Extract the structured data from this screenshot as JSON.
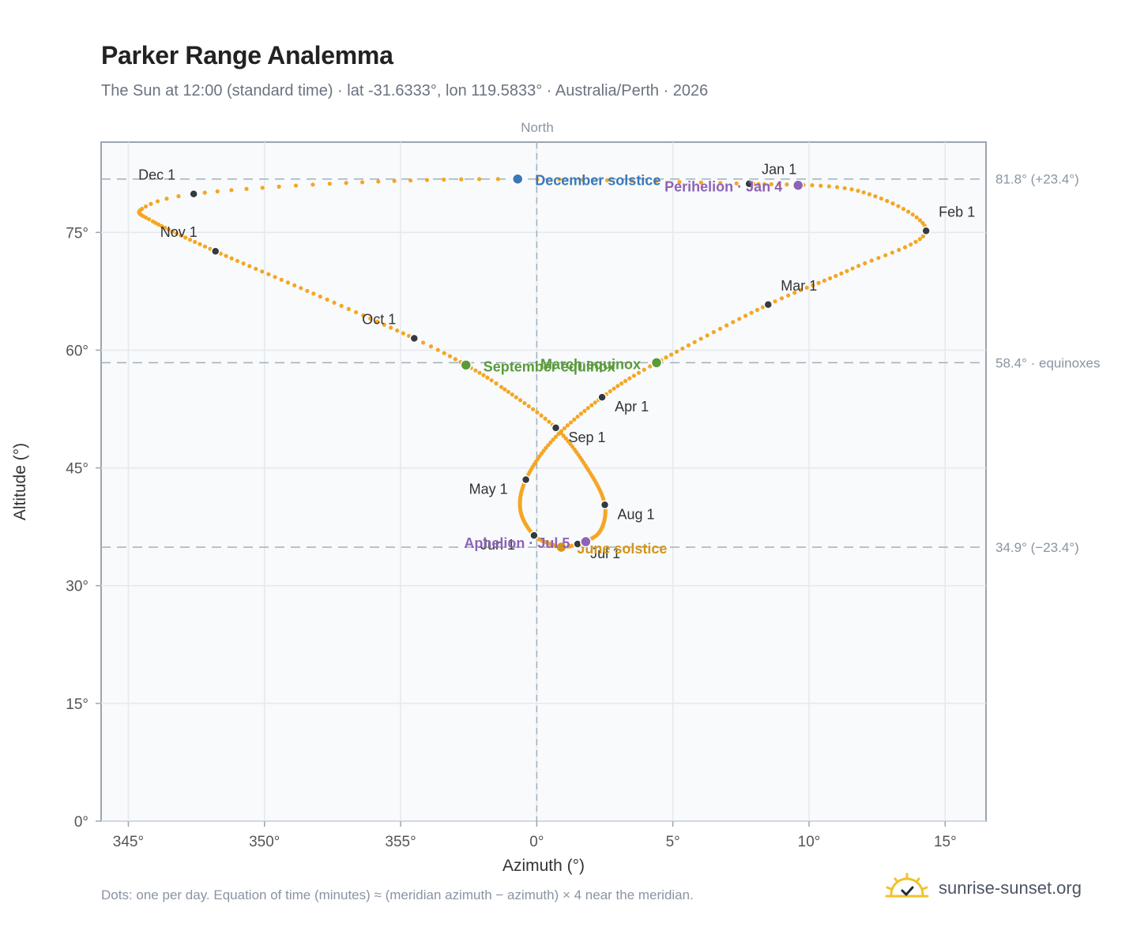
{
  "title": "Parker Range Analemma",
  "subtitle": "The Sun at 12:00 (standard time) · lat -31.6333°, lon 119.5833° · Australia/Perth · 2026",
  "footer_note": "Dots: one per day. Equation of time (minutes) ≈ (meridian azimuth − azimuth) × 4 near the meridian.",
  "brand": {
    "name": "sunrise-sunset.org",
    "icon": "sun-logo-icon"
  },
  "colors": {
    "path": "#f5a623",
    "month_marker": "#333a40",
    "december_solstice": "#3a78b8",
    "june_solstice": "#d4961b",
    "equinox": "#5a9a3a",
    "apsis": "#8e63b5",
    "guide": "#9fb0bd",
    "grid": "#e4e9ee",
    "plot_bg": "#f8fafc"
  },
  "chart_data": {
    "type": "scatter",
    "title": "Parker Range Analemma",
    "xlabel": "Azimuth (°)",
    "ylabel": "Altitude (°)",
    "top_label": "North",
    "xlim": [
      344,
      16.5
    ],
    "ylim": [
      0,
      86.5
    ],
    "x_ticks": [
      {
        "value": 345,
        "label": "345°"
      },
      {
        "value": 350,
        "label": "350°"
      },
      {
        "value": 355,
        "label": "355°"
      },
      {
        "value": 0,
        "label": "0°"
      },
      {
        "value": 5,
        "label": "5°"
      },
      {
        "value": 10,
        "label": "10°"
      },
      {
        "value": 15,
        "label": "15°"
      }
    ],
    "y_ticks": [
      {
        "value": 0,
        "label": "0°"
      },
      {
        "value": 15,
        "label": "15°"
      },
      {
        "value": 30,
        "label": "30°"
      },
      {
        "value": 45,
        "label": "45°"
      },
      {
        "value": 60,
        "label": "60°"
      },
      {
        "value": 75,
        "label": "75°"
      }
    ],
    "grid": true,
    "reference_lines": [
      {
        "altitude": 81.8,
        "label": "81.8° (+23.4°)"
      },
      {
        "altitude": 58.4,
        "label": "58.4° · equinoxes"
      },
      {
        "altitude": 34.9,
        "label": "34.9° (−23.4°)"
      }
    ],
    "meridian_azimuth": 0,
    "path_keypoints": [
      {
        "day": 1,
        "az": 7.8,
        "alt": 81.2
      },
      {
        "day": 16,
        "az": 11.8,
        "alt": 80.3
      },
      {
        "day": 32,
        "az": 14.3,
        "alt": 75.2
      },
      {
        "day": 46,
        "az": 11.6,
        "alt": 70.4
      },
      {
        "day": 60,
        "az": 8.5,
        "alt": 65.8
      },
      {
        "day": 79,
        "az": 4.4,
        "alt": 58.4
      },
      {
        "day": 91,
        "az": 2.4,
        "alt": 54.0
      },
      {
        "day": 106,
        "az": 0.6,
        "alt": 48.6
      },
      {
        "day": 121,
        "az": -0.4,
        "alt": 43.5
      },
      {
        "day": 136,
        "az": -0.6,
        "alt": 39.6
      },
      {
        "day": 152,
        "az": -0.1,
        "alt": 36.4
      },
      {
        "day": 163,
        "az": 0.6,
        "alt": 35.2
      },
      {
        "day": 172,
        "az": 0.9,
        "alt": 34.9
      },
      {
        "day": 182,
        "az": 1.5,
        "alt": 35.3
      },
      {
        "day": 197,
        "az": 2.3,
        "alt": 36.8
      },
      {
        "day": 213,
        "az": 2.5,
        "alt": 40.3
      },
      {
        "day": 228,
        "az": 1.9,
        "alt": 44.7
      },
      {
        "day": 244,
        "az": 0.7,
        "alt": 50.1
      },
      {
        "day": 258,
        "az": -1.3,
        "alt": 55.3
      },
      {
        "day": 266,
        "az": -2.6,
        "alt": 58.1
      },
      {
        "day": 274,
        "az": -4.5,
        "alt": 61.5
      },
      {
        "day": 289,
        "az": -8.2,
        "alt": 67.2
      },
      {
        "day": 305,
        "az": -11.8,
        "alt": 72.6
      },
      {
        "day": 320,
        "az": -14.1,
        "alt": 76.4
      },
      {
        "day": 329,
        "az": -14.5,
        "alt": 78.0
      },
      {
        "day": 335,
        "az": -12.6,
        "alt": 79.9
      },
      {
        "day": 345,
        "az": -7.0,
        "alt": 81.3
      },
      {
        "day": 355,
        "az": -0.7,
        "alt": 81.8
      },
      {
        "day": 366,
        "az": 7.8,
        "alt": 81.2
      }
    ],
    "month_markers": [
      {
        "label": "Jan 1",
        "az": 7.8,
        "alt": 81.2,
        "dx": 16,
        "dy": -12
      },
      {
        "label": "Feb 1",
        "az": 14.3,
        "alt": 75.2,
        "dx": 16,
        "dy": -18
      },
      {
        "label": "Mar 1",
        "az": 8.5,
        "alt": 65.8,
        "dx": 16,
        "dy": -18
      },
      {
        "label": "Apr 1",
        "az": 2.4,
        "alt": 54.0,
        "dx": 16,
        "dy": 18
      },
      {
        "label": "May 1",
        "az": -0.4,
        "alt": 43.5,
        "dx": -72,
        "dy": 18
      },
      {
        "label": "Jun 1",
        "az": -0.1,
        "alt": 36.4,
        "dx": -68,
        "dy": 18
      },
      {
        "label": "Jul 1",
        "az": 1.5,
        "alt": 35.3,
        "dx": 16,
        "dy": 18
      },
      {
        "label": "Aug 1",
        "az": 2.5,
        "alt": 40.3,
        "dx": 16,
        "dy": 18
      },
      {
        "label": "Sep 1",
        "az": 0.7,
        "alt": 50.1,
        "dx": 16,
        "dy": 18
      },
      {
        "label": "Oct 1",
        "az": -4.5,
        "alt": 61.5,
        "dx": -66,
        "dy": -18
      },
      {
        "label": "Nov 1",
        "az": -11.8,
        "alt": 72.6,
        "dx": -70,
        "dy": -18
      },
      {
        "label": "Dec 1",
        "az": -12.6,
        "alt": 79.9,
        "dx": -70,
        "dy": -18
      }
    ],
    "events": [
      {
        "label": "December solstice",
        "az": -0.7,
        "alt": 81.8,
        "color": "#3a78b8",
        "anchor": "start",
        "dx": 22,
        "dy": 8
      },
      {
        "label": "Perihelion · Jan 4",
        "az": 9.6,
        "alt": 81.0,
        "color": "#8e63b5",
        "anchor": "end",
        "dx": -20,
        "dy": 8
      },
      {
        "label": "March equinox",
        "az": 4.4,
        "alt": 58.4,
        "color": "#5a9a3a",
        "anchor": "end",
        "dx": -20,
        "dy": 8
      },
      {
        "label": "September equinox",
        "az": -2.6,
        "alt": 58.1,
        "color": "#5a9a3a",
        "anchor": "start",
        "dx": 22,
        "dy": 8
      },
      {
        "label": "June solstice",
        "az": 0.9,
        "alt": 34.9,
        "color": "#d4961b",
        "anchor": "start",
        "dx": 20,
        "dy": 8
      },
      {
        "label": "Aphelion · Jul 5",
        "az": 1.8,
        "alt": 35.6,
        "color": "#8e63b5",
        "anchor": "end",
        "dx": -20,
        "dy": 8
      }
    ]
  }
}
